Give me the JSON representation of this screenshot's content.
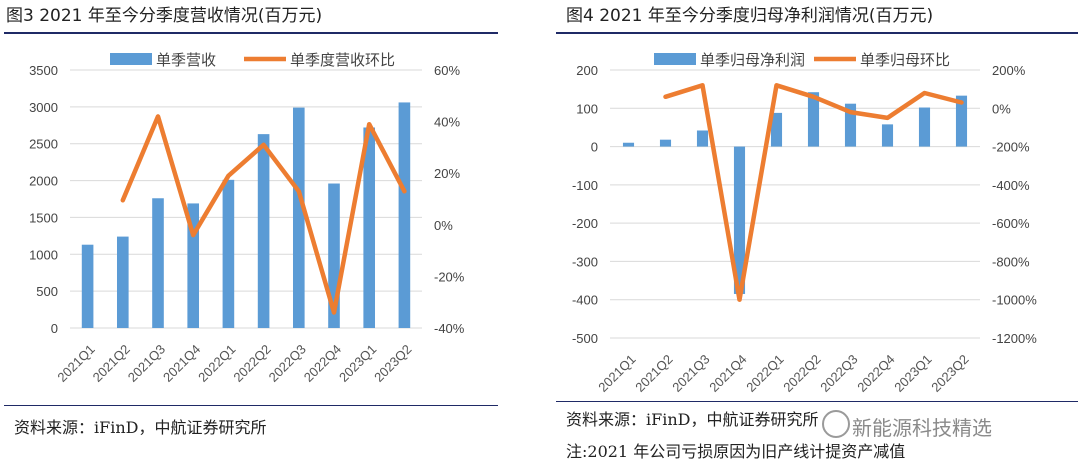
{
  "panels": {
    "left": {
      "title": "图3  2021 年至今分季度营收情况(百万元)",
      "source": "资料来源：iFinD，中航证券研究所"
    },
    "right": {
      "title": "图4  2021 年至今分季度归母净利润情况(百万元)",
      "source": "资料来源：iFinD，中航证券研究所",
      "note": "注:2021 年公司亏损原因为旧产线计提资产减值"
    }
  },
  "watermark": {
    "text": "新能源科技精选"
  },
  "colors": {
    "bar": "#5b9bd5",
    "line": "#ed7d31",
    "rule": "#1f2a66"
  },
  "chart_data": [
    {
      "type": "bar",
      "title": "2021 年至今分季度营收情况(百万元)",
      "categories": [
        "2021Q1",
        "2021Q2",
        "2021Q3",
        "2021Q4",
        "2022Q1",
        "2022Q2",
        "2022Q3",
        "2022Q4",
        "2023Q1",
        "2023Q2"
      ],
      "series": [
        {
          "name": "单季营收",
          "type": "bar",
          "axis": "left",
          "values": [
            1130,
            1240,
            1760,
            1690,
            2010,
            2630,
            2990,
            1960,
            2720,
            3060
          ]
        },
        {
          "name": "单季度营收环比",
          "type": "line",
          "axis": "right",
          "unit": "%",
          "values": [
            null,
            9.5,
            42,
            -4,
            19,
            31,
            13,
            -34,
            39,
            13
          ]
        }
      ],
      "ylim_left": [
        0,
        3500
      ],
      "yticks_left": [
        "0",
        "500",
        "1000",
        "1500",
        "2000",
        "2500",
        "3000",
        "3500"
      ],
      "ylim_right": [
        -40,
        60
      ],
      "yticks_right": [
        "-40%",
        "-20%",
        "0%",
        "20%",
        "40%",
        "60%"
      ],
      "grid": true,
      "legend": "top"
    },
    {
      "type": "bar",
      "title": "2021 年至今分季度归母净利润情况(百万元)",
      "categories": [
        "2021Q1",
        "2021Q2",
        "2021Q3",
        "2021Q4",
        "2022Q1",
        "2022Q2",
        "2022Q3",
        "2022Q4",
        "2023Q1",
        "2023Q2"
      ],
      "series": [
        {
          "name": "单季归母净利润",
          "type": "bar",
          "axis": "left",
          "values": [
            10,
            18,
            42,
            -385,
            88,
            142,
            112,
            58,
            102,
            133
          ]
        },
        {
          "name": "单季归母环比",
          "type": "line",
          "axis": "right",
          "unit": "%",
          "values": [
            null,
            60,
            120,
            -1000,
            120,
            60,
            -20,
            -50,
            80,
            30
          ]
        }
      ],
      "ylim_left": [
        -500,
        200
      ],
      "yticks_left": [
        "-500",
        "-400",
        "-300",
        "-200",
        "-100",
        "0",
        "100",
        "200"
      ],
      "ylim_right": [
        -1200,
        200
      ],
      "yticks_right": [
        "-1200%",
        "-1000%",
        "-800%",
        "-600%",
        "-400%",
        "-200%",
        "0%",
        "200%"
      ],
      "grid": true,
      "legend": "top"
    }
  ]
}
